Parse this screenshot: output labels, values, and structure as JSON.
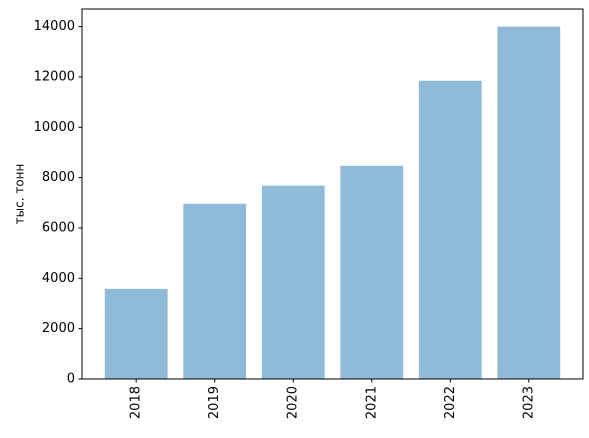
{
  "chart_data": {
    "type": "bar",
    "y_label": "тыс. тонн",
    "categories": [
      "2018",
      "2019",
      "2020",
      "2021",
      "2022",
      "2023"
    ],
    "values": [
      3580,
      6960,
      7680,
      8470,
      11850,
      14000
    ],
    "color": "#8fbbd9",
    "ylim": [
      0,
      14700
    ],
    "yticks": [
      0,
      2000,
      4000,
      6000,
      8000,
      10000,
      12000,
      14000
    ]
  }
}
